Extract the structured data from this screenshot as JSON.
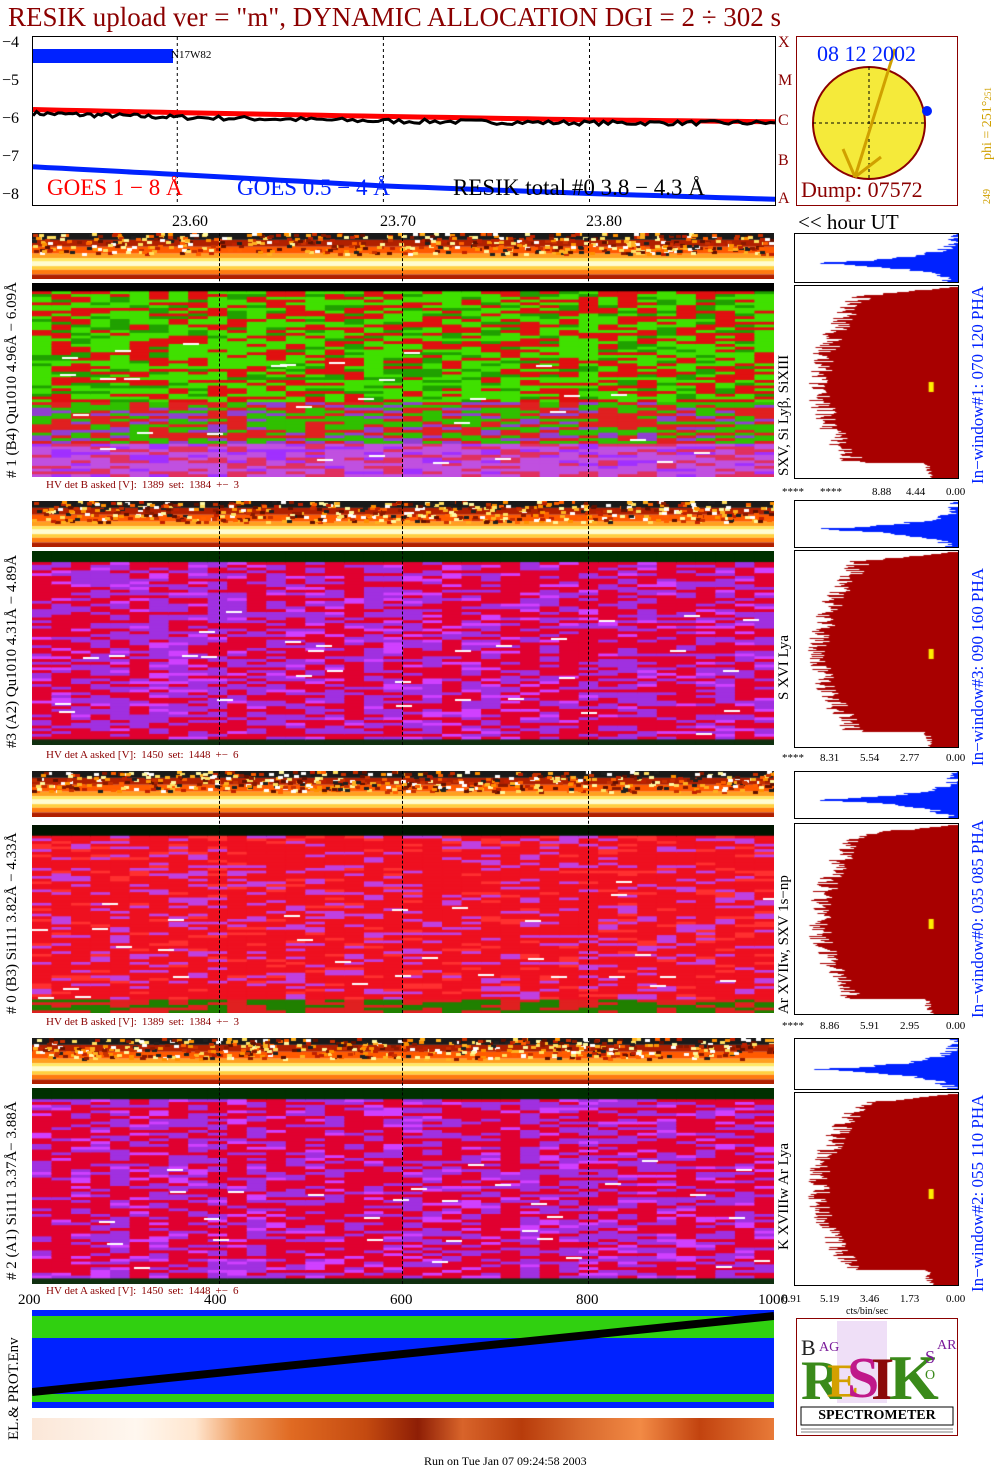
{
  "title": "RESIK upload ver = \"m\", DYNAMIC ALLOCATION  DGI =   2 ÷ 302 s",
  "goes_panel": {
    "y_ticks": [
      "−4",
      "−5",
      "−6",
      "−7",
      "−8"
    ],
    "legend_goes18": "GOES 1 − 8 Å",
    "legend_goes054": "GOES 0.5 − 4 Å",
    "legend_resik": "RESIK total #0  3.8 − 4.3 Å",
    "flag_label": "N17W82",
    "class_letters": [
      "X",
      "M",
      "C",
      "B",
      "A"
    ],
    "time_ticks": [
      "23.60",
      "23.70",
      "23.80"
    ],
    "hour_label": "<< hour UT",
    "colors": {
      "goes18": "#ff0000",
      "goes054": "#0022ff",
      "resik": "#000000"
    }
  },
  "sun_panel": {
    "date": "08 12 2002",
    "dump": "Dump: 07572",
    "phi": "phi = 251°",
    "phi_sub": "251",
    "phi_bottom": "249"
  },
  "detectors": [
    {
      "id": "det1",
      "left_label": "# 1 (B4) Qu1010 4.96Å − 6.09Å",
      "line_label": "SXV, Si Lyβ, SiXIII",
      "hv_label": "HV det B asked [V]:",
      "hv_asked": "1389",
      "hv_set_label": "set:",
      "hv_set": "1384",
      "hv_pm": "+−",
      "hv_err": "3",
      "pha_label": "In−window#1:  070 120 PHA",
      "pha_ticks": [
        "****",
        "****",
        "8.88",
        "4.44",
        "0.00"
      ]
    },
    {
      "id": "det3",
      "left_label": "#3 (A2) Qu1010  4.31Å − 4.89Å",
      "line_label": "S XVI Lya",
      "hv_label": "HV det A asked [V]:",
      "hv_asked": "1450",
      "hv_set_label": "set:",
      "hv_set": "1448",
      "hv_pm": "+−",
      "hv_err": "6",
      "pha_label": "In−window#3:  090 160 PHA",
      "pha_ticks": [
        "****",
        "8.31",
        "5.54",
        "2.77",
        "0.00"
      ]
    },
    {
      "id": "det0",
      "left_label": "# 0 (B3) Si111  3.82Å − 4.33Å",
      "line_label": "Ar XVIIw,  SXV 1s−np",
      "hv_label": "HV det B asked [V]:",
      "hv_asked": "1389",
      "hv_set_label": "set:",
      "hv_set": "1384",
      "hv_pm": "+−",
      "hv_err": "3",
      "pha_label": "In−window#0:  035 085 PHA",
      "pha_ticks": [
        "****",
        "8.86",
        "5.91",
        "2.95",
        "0.00"
      ]
    },
    {
      "id": "det2",
      "left_label": "# 2 (A1) Si111  3.37Å− 3.88Å",
      "line_label": "K XVIIIw  Ar Lya",
      "hv_label": "HV det A asked [V]:",
      "hv_asked": "1450",
      "hv_set_label": "set:",
      "hv_set": "1448",
      "hv_pm": "+−",
      "hv_err": "6",
      "pha_label": "In−window#2:  055 110 PHA",
      "pha_ticks": [
        "6.91",
        "5.19",
        "3.46",
        "1.73",
        "0.00"
      ]
    }
  ],
  "bin_ticks": [
    "200",
    "400",
    "600",
    "800",
    "1000"
  ],
  "pha_xunit": "cts/bin/sec",
  "env_label": "EL.& PROT.Env",
  "logo": {
    "letters": "RESIK",
    "bragg": "BRAGG",
    "solar": "SOLAR",
    "spectrometer": "SPECTROMETER"
  },
  "footer": "Run on Tue Jan 07 09:24:58 2003",
  "chart_data": {
    "type": "line",
    "title": "RESIK upload ver = \"m\", DYNAMIC ALLOCATION  DGI =   2 ÷ 302 s",
    "xlabel": "hour UT",
    "ylabel": "",
    "x_range": [
      23.53,
      23.89
    ],
    "ylim": [
      -8.2,
      -3.8
    ],
    "series": [
      {
        "name": "GOES 1 − 8 Å",
        "x": [
          23.53,
          23.6,
          23.7,
          23.8,
          23.89
        ],
        "values": [
          -5.7,
          -5.78,
          -5.88,
          -5.97,
          -6.02
        ]
      },
      {
        "name": "GOES 0.5 − 4 Å",
        "x": [
          23.53,
          23.6,
          23.7,
          23.8,
          23.89
        ],
        "values": [
          -7.2,
          -7.4,
          -7.7,
          -7.9,
          -8.05
        ]
      },
      {
        "name": "RESIK total #0  3.8 − 4.3 Å",
        "x": [
          23.53,
          23.6,
          23.7,
          23.8,
          23.89
        ],
        "values": [
          -5.8,
          -5.9,
          -6.0,
          -6.05,
          -6.05
        ]
      }
    ]
  }
}
